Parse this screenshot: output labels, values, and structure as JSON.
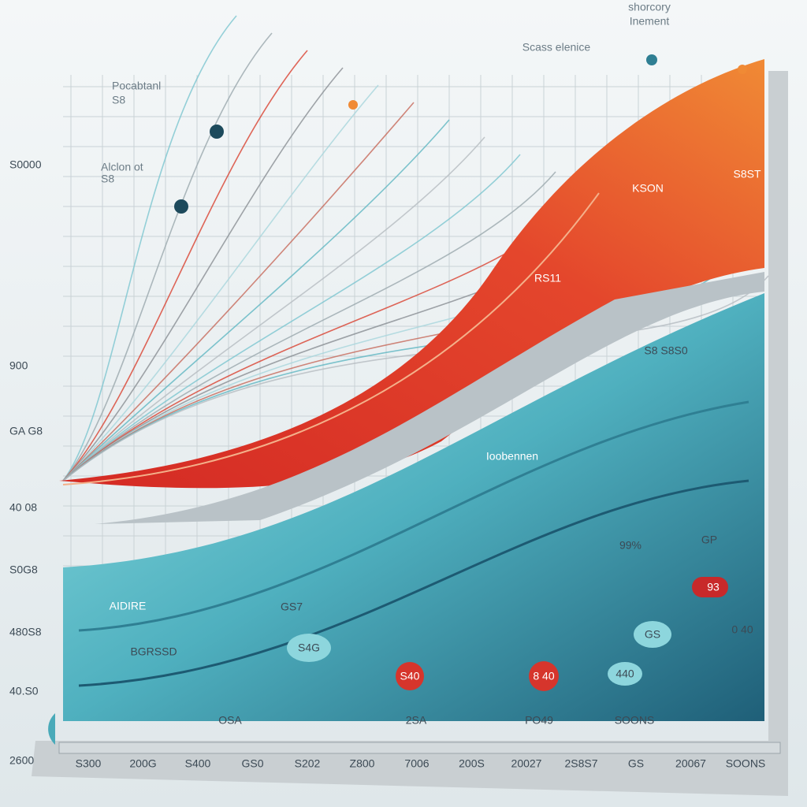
{
  "header": {
    "title": "shorcory",
    "subtitle": "Inement",
    "caption": "Scass elenice"
  },
  "side_notes": [
    "Pocabtanl",
    "S8",
    "Alclon ot",
    "S8"
  ],
  "left_labels": [
    "S0000",
    "900",
    "GA G8",
    "40 08",
    "S0G8",
    "480S8",
    "40.S0",
    "2600"
  ],
  "bottom_labels": [
    "S300",
    "200G",
    "S400",
    "GS0",
    "S202",
    "Z800",
    "7006",
    "200S",
    "20027",
    "2S8S7",
    "GS",
    "20067",
    "SOONS"
  ],
  "axis_labels": [
    "OSA",
    "2SA",
    "PO49",
    "SOONS"
  ],
  "band_labels": [
    "KSON",
    "RS11",
    "S8 S8S0",
    "Ioobennen",
    "AIDIRE",
    "BGRSSD",
    "S4G",
    "GS7",
    "S40",
    "8 40",
    "440",
    "99%",
    "GP",
    "93",
    "S8ST",
    "GS",
    "0 40"
  ]
}
